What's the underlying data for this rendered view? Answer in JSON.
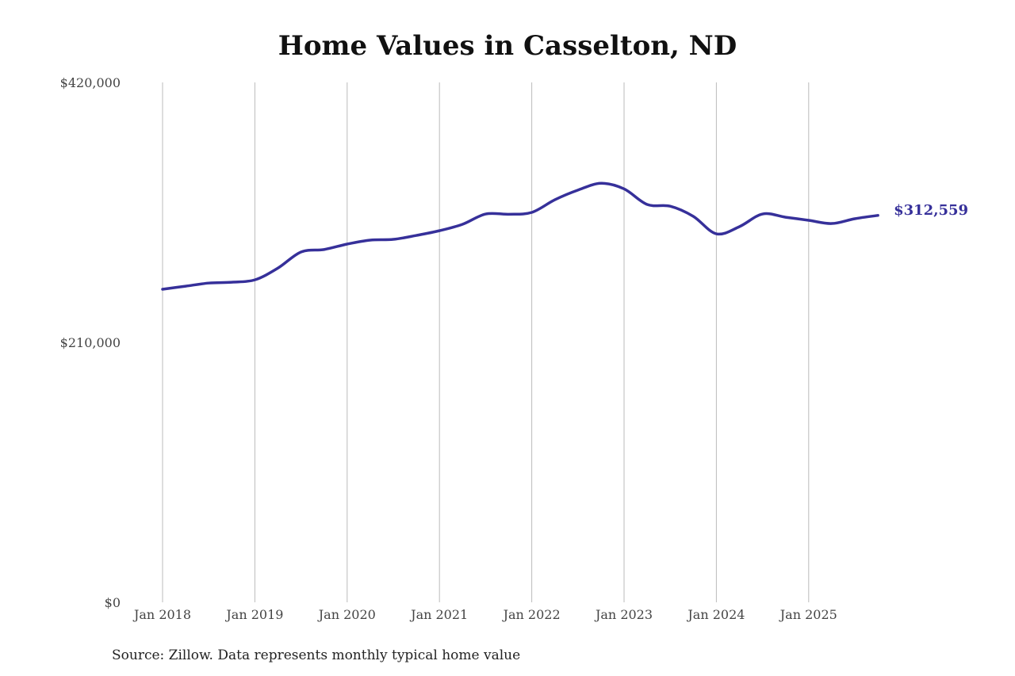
{
  "chart_data": {
    "type": "line",
    "title": "Home Values in Casselton, ND",
    "source": "Source: Zillow. Data represents monthly typical home value",
    "xlabel": "",
    "ylabel": "",
    "ylim": [
      0,
      420000
    ],
    "yticks": [
      {
        "value": 0,
        "label": "$0"
      },
      {
        "value": 210000,
        "label": "$210,000"
      },
      {
        "value": 420000,
        "label": "$420,000"
      }
    ],
    "xticks": [
      {
        "value": "2018-01",
        "label": "Jan 2018"
      },
      {
        "value": "2019-01",
        "label": "Jan 2019"
      },
      {
        "value": "2020-01",
        "label": "Jan 2020"
      },
      {
        "value": "2021-01",
        "label": "Jan 2021"
      },
      {
        "value": "2022-01",
        "label": "Jan 2022"
      },
      {
        "value": "2023-01",
        "label": "Jan 2023"
      },
      {
        "value": "2024-01",
        "label": "Jan 2024"
      },
      {
        "value": "2025-01",
        "label": "Jan 2025"
      }
    ],
    "grid": "vertical",
    "line_color": "#36309a",
    "end_label": "$312,559",
    "series": [
      {
        "x": [
          "2018-01",
          "2018-04",
          "2018-07",
          "2018-10",
          "2019-01",
          "2019-04",
          "2019-07",
          "2019-10",
          "2020-01",
          "2020-04",
          "2020-07",
          "2020-10",
          "2021-01",
          "2021-04",
          "2021-07",
          "2021-10",
          "2022-01",
          "2022-04",
          "2022-07",
          "2022-10",
          "2023-01",
          "2023-04",
          "2023-07",
          "2023-10",
          "2024-01",
          "2024-04",
          "2024-07",
          "2024-10",
          "2025-01",
          "2025-04",
          "2025-07",
          "2025-10"
        ],
        "values": [
          252900,
          255400,
          257900,
          258600,
          260500,
          270000,
          283000,
          285000,
          289400,
          292600,
          293200,
          296400,
          300200,
          305400,
          313700,
          313500,
          315000,
          325200,
          333000,
          338500,
          334000,
          321400,
          320000,
          311800,
          297700,
          303500,
          313700,
          311100,
          308600,
          306000,
          309900,
          312559
        ]
      }
    ]
  }
}
